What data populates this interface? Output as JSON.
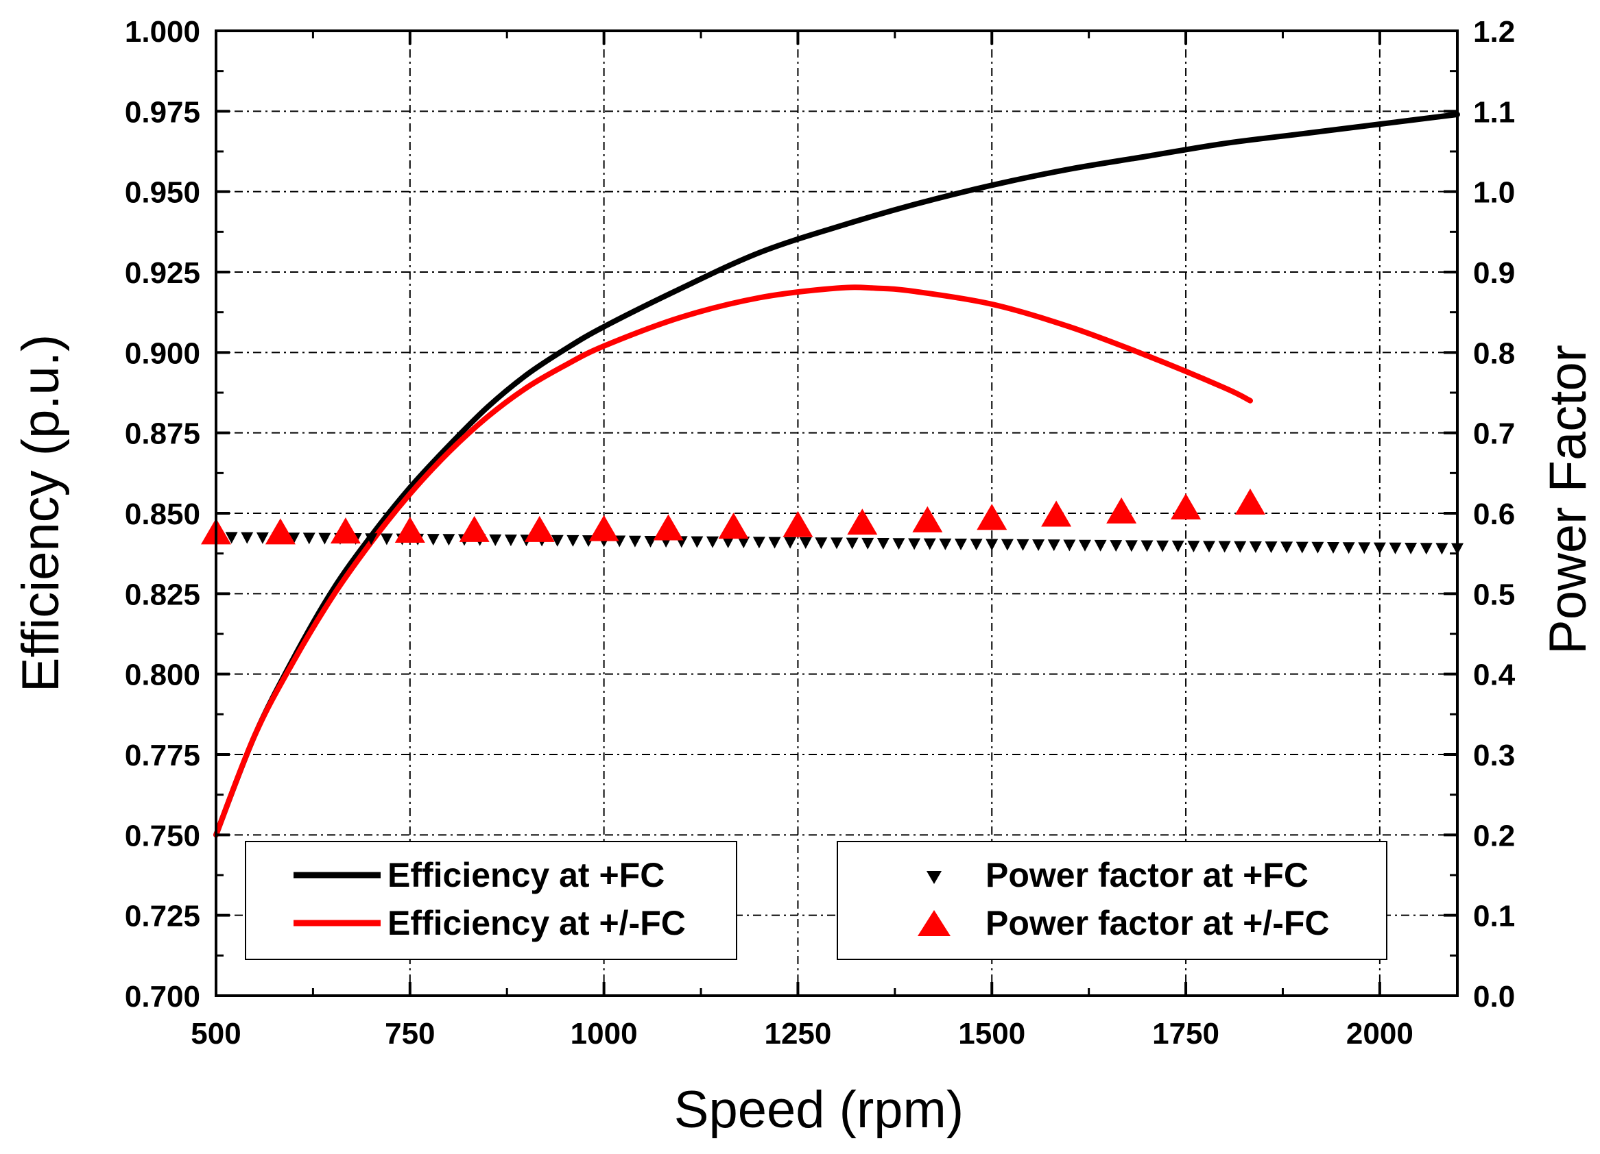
{
  "chart_data": {
    "type": "line",
    "xlabel": "Speed (rpm)",
    "ylabel": "Efficiency (p.u.)",
    "y2label": "Power Factor",
    "xlim": [
      500,
      2100
    ],
    "ylim": [
      0.7,
      1.0
    ],
    "y2lim": [
      0.0,
      1.2
    ],
    "x_ticks": [
      "500",
      "750",
      "1000",
      "1250",
      "1500",
      "1750",
      "2000"
    ],
    "x_tick_values": [
      500,
      750,
      1000,
      1250,
      1500,
      1750,
      2000
    ],
    "y_ticks": [
      "0.700",
      "0.725",
      "0.750",
      "0.775",
      "0.800",
      "0.825",
      "0.850",
      "0.875",
      "0.900",
      "0.925",
      "0.950",
      "0.975",
      "1.000"
    ],
    "y_tick_values": [
      0.7,
      0.725,
      0.75,
      0.775,
      0.8,
      0.825,
      0.85,
      0.875,
      0.9,
      0.925,
      0.95,
      0.975,
      1.0
    ],
    "y2_ticks": [
      "0.0",
      "0.1",
      "0.2",
      "0.3",
      "0.4",
      "0.5",
      "0.6",
      "0.7",
      "0.8",
      "0.9",
      "1.0",
      "1.1",
      "1.2"
    ],
    "y2_tick_values": [
      0.0,
      0.1,
      0.2,
      0.3,
      0.4,
      0.5,
      0.6,
      0.7,
      0.8,
      0.9,
      1.0,
      1.1,
      1.2
    ],
    "grid": true,
    "series": [
      {
        "name": "Efficiency at +FC",
        "axis": "left",
        "style": "line",
        "color": "#000000",
        "x": [
          500,
          550,
          600,
          650,
          700,
          750,
          800,
          850,
          900,
          950,
          1000,
          1100,
          1200,
          1300,
          1400,
          1500,
          1600,
          1700,
          1800,
          1900,
          2000,
          2100
        ],
        "y": [
          0.75,
          0.781,
          0.805,
          0.826,
          0.843,
          0.858,
          0.871,
          0.883,
          0.893,
          0.901,
          0.908,
          0.92,
          0.931,
          0.939,
          0.946,
          0.952,
          0.957,
          0.961,
          0.965,
          0.968,
          0.971,
          0.974
        ]
      },
      {
        "name": "Efficiency at +/-FC",
        "axis": "left",
        "style": "line",
        "color": "#ff0000",
        "x": [
          500,
          550,
          600,
          650,
          700,
          750,
          800,
          850,
          900,
          950,
          1000,
          1100,
          1200,
          1300,
          1350,
          1400,
          1500,
          1600,
          1700,
          1800,
          1833
        ],
        "y": [
          0.75,
          0.781,
          0.804,
          0.824,
          0.841,
          0.856,
          0.869,
          0.88,
          0.889,
          0.896,
          0.902,
          0.911,
          0.917,
          0.92,
          0.92,
          0.919,
          0.915,
          0.908,
          0.899,
          0.889,
          0.885
        ]
      },
      {
        "name": "Power factor at +FC",
        "axis": "right",
        "style": "marker-triangle-down",
        "color": "#000000",
        "x_start": 500,
        "x_end": 2100,
        "x_step": 20,
        "y_start": 0.57,
        "y_end": 0.556
      },
      {
        "name": "Power factor at +/-FC",
        "axis": "right",
        "style": "marker-triangle-up",
        "color": "#ff0000",
        "x": [
          500,
          583,
          667,
          750,
          833,
          917,
          1000,
          1083,
          1167,
          1250,
          1333,
          1417,
          1500,
          1583,
          1667,
          1750,
          1833
        ],
        "y": [
          0.575,
          0.575,
          0.576,
          0.577,
          0.578,
          0.578,
          0.579,
          0.58,
          0.582,
          0.584,
          0.587,
          0.59,
          0.593,
          0.597,
          0.601,
          0.606,
          0.612
        ]
      }
    ],
    "legend": {
      "left": [
        "Efficiency at +FC",
        "Efficiency at +/-FC"
      ],
      "right": [
        "Power factor at +FC",
        "Power factor at +/-FC"
      ],
      "placement": "bottom"
    }
  }
}
